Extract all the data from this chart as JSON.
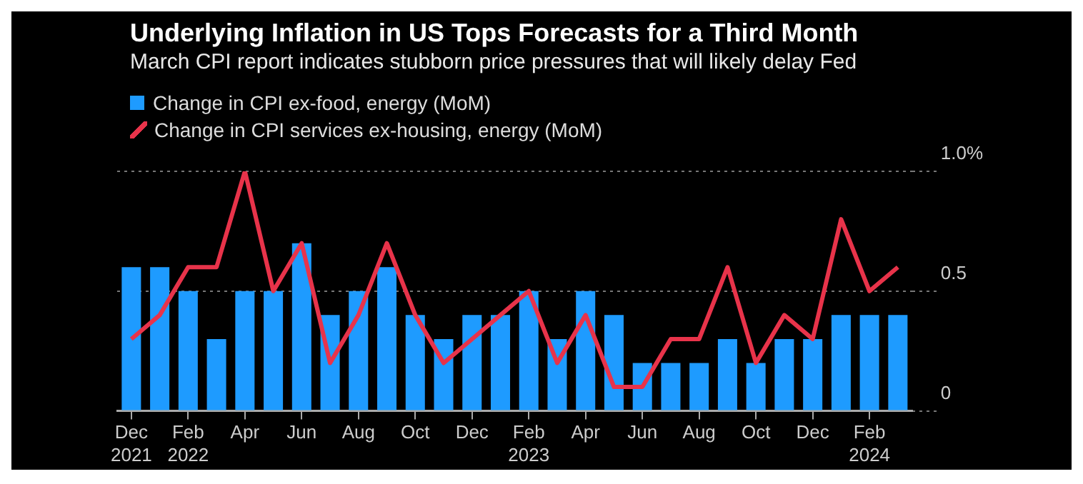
{
  "chart_data": {
    "type": "bar",
    "title": "Underlying Inflation in US Tops Forecasts for a Third Month",
    "subtitle": "March CPI report indicates stubborn price pressures that will likely delay Fed",
    "categories": [
      "Dec 2021",
      null,
      "Feb 2022",
      null,
      "Apr",
      null,
      "Jun",
      null,
      "Aug",
      null,
      "Oct",
      null,
      "Dec",
      null,
      "Feb 2023",
      null,
      "Apr",
      null,
      "Jun",
      null,
      "Aug",
      null,
      "Oct",
      null,
      "Dec",
      null,
      "Feb 2024",
      null
    ],
    "series": [
      {
        "name": "Change in CPI ex-food, energy (MoM)",
        "color": "#1e9bff",
        "values": [
          0.6,
          0.6,
          0.5,
          0.3,
          0.5,
          0.5,
          0.7,
          0.4,
          0.5,
          0.6,
          0.4,
          0.3,
          0.4,
          0.4,
          0.5,
          0.3,
          0.5,
          0.4,
          0.2,
          0.2,
          0.2,
          0.3,
          0.2,
          0.3,
          0.3,
          0.4,
          0.4,
          0.4
        ]
      },
      {
        "name": "Change in CPI services ex-housing, energy (MoM)",
        "type": "line",
        "color": "#e8334a",
        "values": [
          0.3,
          0.4,
          0.6,
          0.6,
          1.0,
          0.5,
          0.7,
          0.2,
          0.4,
          0.7,
          0.4,
          0.2,
          0.3,
          0.4,
          0.5,
          0.2,
          0.4,
          0.1,
          0.1,
          0.3,
          0.3,
          0.6,
          0.2,
          0.4,
          0.3,
          0.8,
          0.5,
          0.6
        ]
      }
    ],
    "ylim": [
      0,
      1.0
    ],
    "yticks": [
      0,
      0.5,
      {
        "value": 1.0,
        "label": "1.0%"
      }
    ],
    "grid": "y",
    "legend": "top left"
  }
}
